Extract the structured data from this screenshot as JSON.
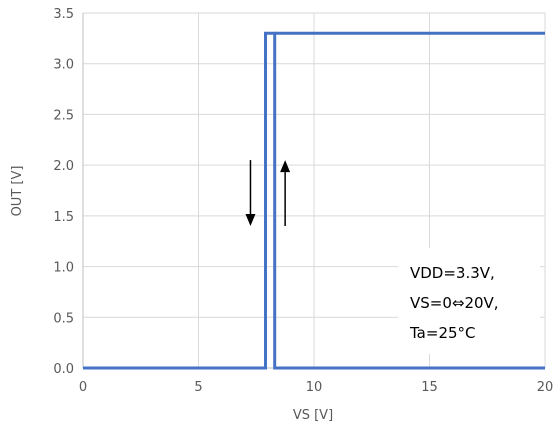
{
  "chart_data": {
    "type": "line",
    "xlabel": "VS [V]",
    "ylabel": "OUT [V]",
    "xlim": [
      0,
      20
    ],
    "ylim": [
      0,
      3.5
    ],
    "x_ticks": [
      "0",
      "5",
      "10",
      "15",
      "20"
    ],
    "y_ticks": [
      "0.0",
      "0.5",
      "1.0",
      "1.5",
      "2.0",
      "2.5",
      "3.0",
      "3.5"
    ],
    "grid": true,
    "series": [
      {
        "x": [
          0,
          7.9,
          7.9,
          8.3,
          8.3,
          20
        ],
        "y": [
          0,
          0,
          3.3,
          3.3,
          0,
          0
        ]
      },
      {
        "x": [
          8.3,
          20
        ],
        "y": [
          3.3,
          3.3
        ]
      }
    ],
    "arrows": [
      {
        "x": 7.25,
        "y_from": 2.05,
        "y_to": 1.4,
        "direction": "down"
      },
      {
        "x": 8.75,
        "y_from": 1.4,
        "y_to": 2.05,
        "direction": "up"
      }
    ],
    "annotation": [
      "VDD=3.3V,",
      "VS=0⇔20V,",
      "Ta=25°C"
    ],
    "colors": {
      "line": "#4472C4",
      "grid": "#D9D9D9",
      "arrow": "#000000"
    }
  }
}
